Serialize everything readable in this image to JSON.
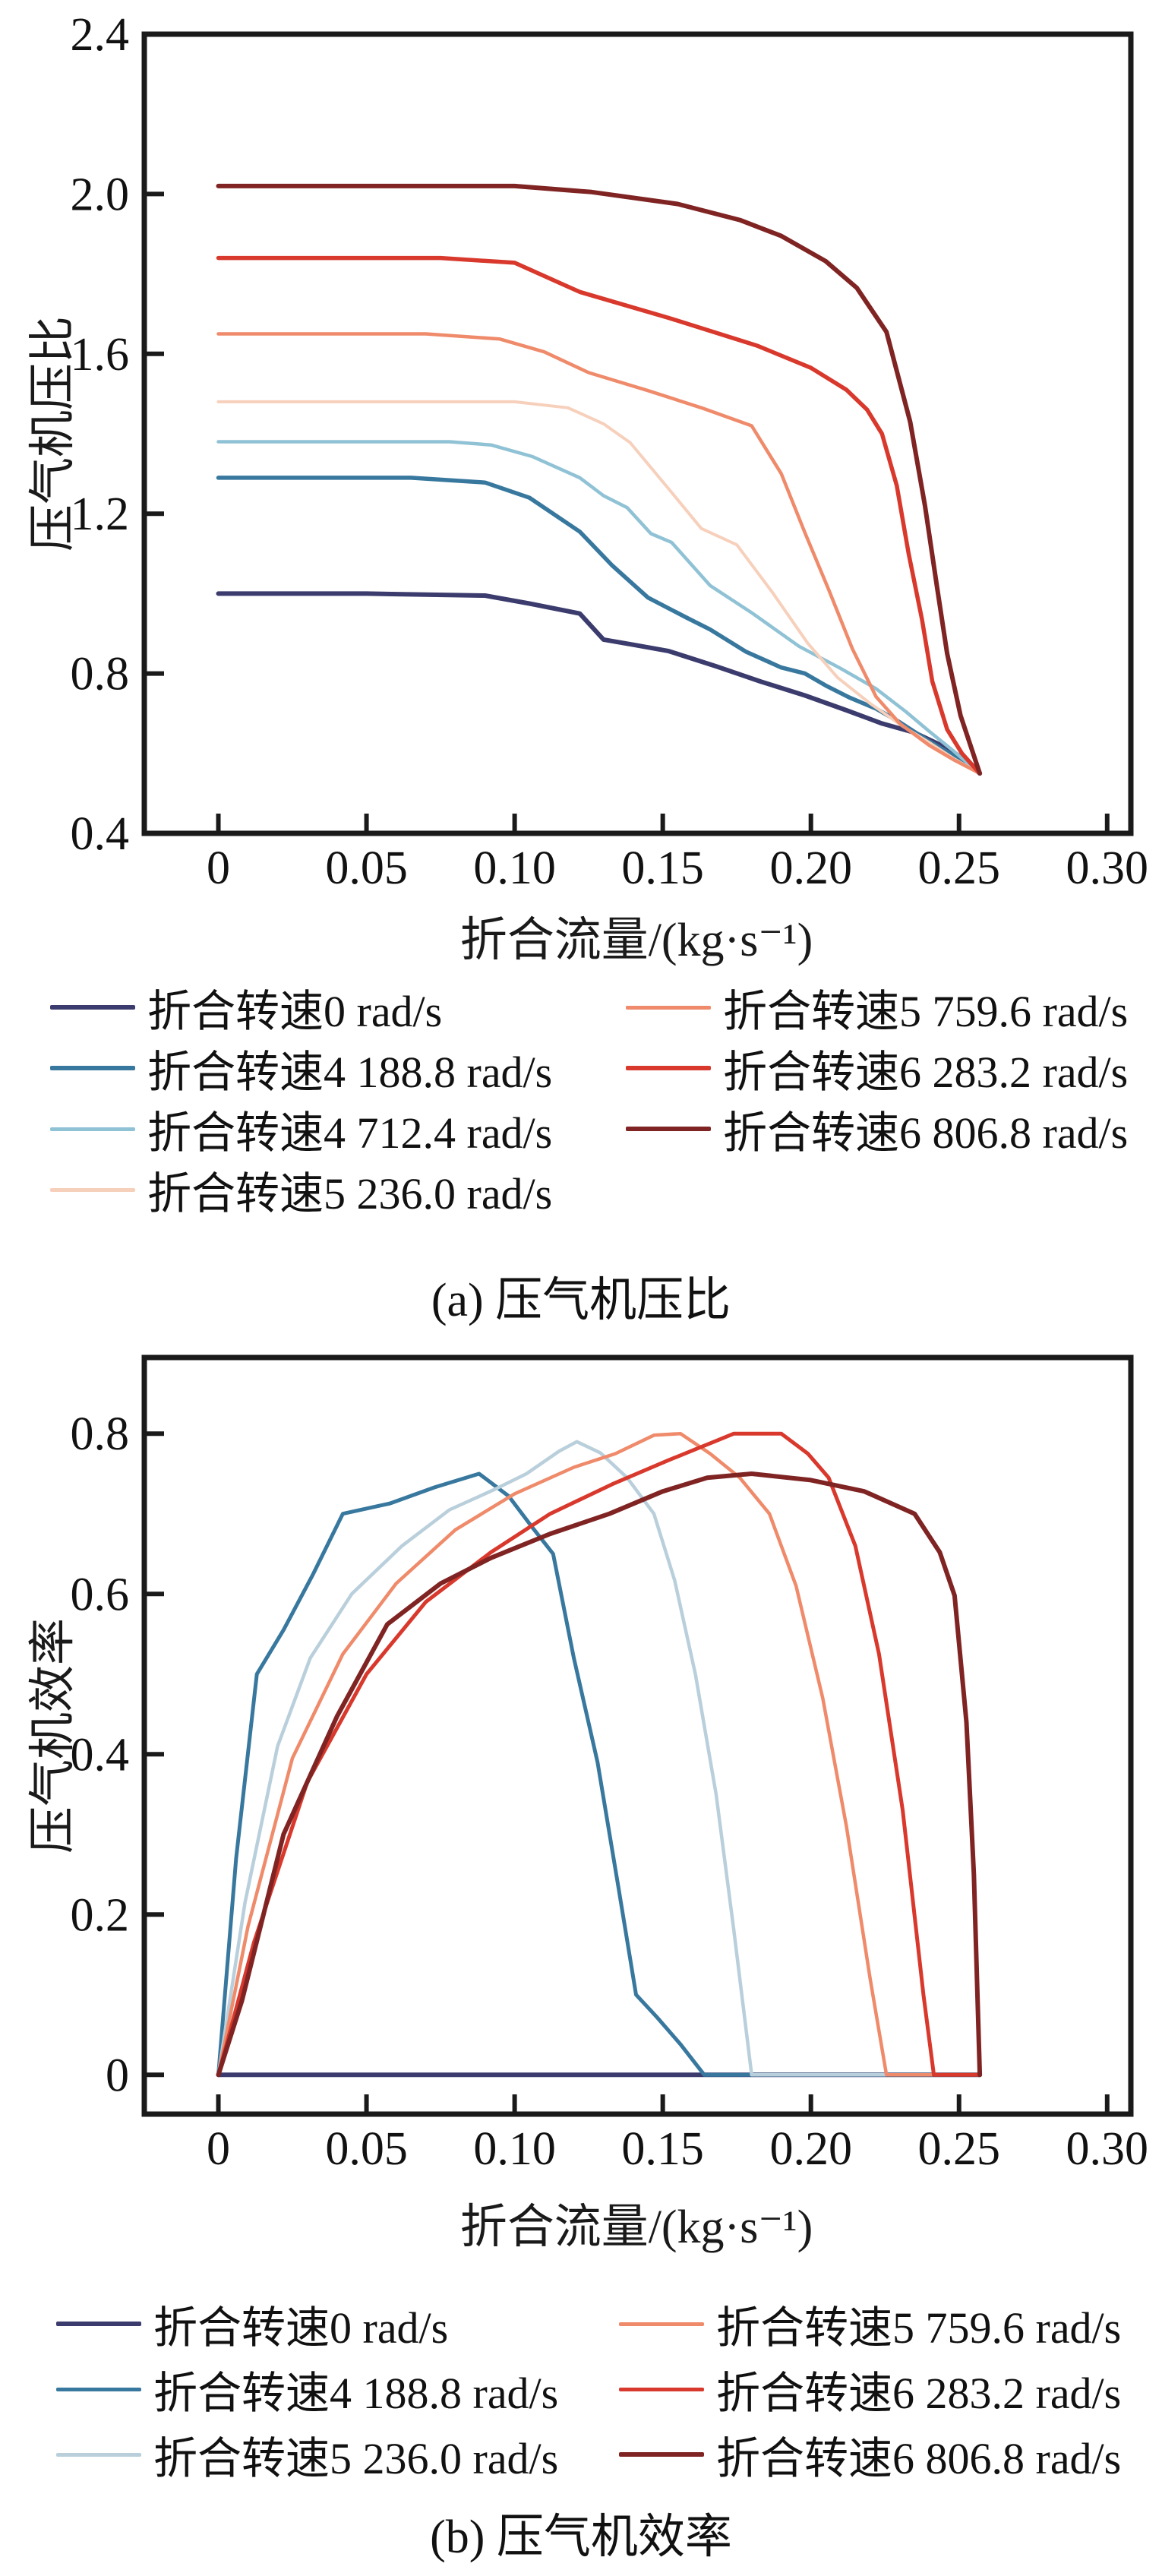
{
  "figure": {
    "background": "#ffffff",
    "axis_color": "#1a1a1a",
    "description": "两张压气机特性曲线图：(a) 压气机压比, (b) 压气机效率"
  },
  "captions": {
    "a": "(a) 压气机压比",
    "b": "(b) 压气机效率"
  },
  "chart_data": [
    {
      "id": "a",
      "type": "line",
      "title": "",
      "xlabel": "折合流量/(kg·s⁻¹)",
      "ylabel": "压气机压比",
      "xlim": [
        -0.025,
        0.308
      ],
      "ylim": [
        0.4,
        2.4
      ],
      "xticks": [
        0,
        0.05,
        0.1,
        0.15,
        0.2,
        0.25,
        0.3
      ],
      "xtick_labels": [
        "0",
        "0.05",
        "0.10",
        "0.15",
        "0.20",
        "0.25",
        "0.30"
      ],
      "yticks": [
        0.4,
        0.8,
        1.2,
        1.6,
        2.0,
        2.4
      ],
      "ytick_labels": [
        "0.4",
        "0.8",
        "1.2",
        "1.6",
        "2.0",
        "2.4"
      ],
      "grid": false,
      "legend_position": "below-two-columns",
      "series": [
        {
          "name": "折合转速0 rad/s",
          "color": "#3b3b6d",
          "width": 6,
          "points": [
            [
              0,
              1.0
            ],
            [
              0.05,
              1.0
            ],
            [
              0.09,
              0.995
            ],
            [
              0.105,
              0.975
            ],
            [
              0.122,
              0.95
            ],
            [
              0.13,
              0.885
            ],
            [
              0.14,
              0.872
            ],
            [
              0.152,
              0.856
            ],
            [
              0.168,
              0.818
            ],
            [
              0.183,
              0.78
            ],
            [
              0.198,
              0.745
            ],
            [
              0.212,
              0.708
            ],
            [
              0.224,
              0.675
            ],
            [
              0.235,
              0.652
            ],
            [
              0.245,
              0.617
            ],
            [
              0.252,
              0.585
            ],
            [
              0.257,
              0.55
            ]
          ]
        },
        {
          "name": "折合转速4 188.8 rad/s",
          "color": "#38789e",
          "width": 5.5,
          "points": [
            [
              0,
              1.29
            ],
            [
              0.065,
              1.29
            ],
            [
              0.09,
              1.278
            ],
            [
              0.105,
              1.24
            ],
            [
              0.122,
              1.155
            ],
            [
              0.133,
              1.07
            ],
            [
              0.145,
              0.99
            ],
            [
              0.158,
              0.94
            ],
            [
              0.166,
              0.91
            ],
            [
              0.178,
              0.855
            ],
            [
              0.19,
              0.815
            ],
            [
              0.198,
              0.8
            ],
            [
              0.205,
              0.77
            ],
            [
              0.213,
              0.74
            ],
            [
              0.222,
              0.712
            ],
            [
              0.23,
              0.678
            ],
            [
              0.24,
              0.63
            ],
            [
              0.248,
              0.595
            ],
            [
              0.257,
              0.55
            ]
          ]
        },
        {
          "name": "折合转速4 712.4 rad/s",
          "color": "#90c2d5",
          "width": 4.5,
          "points": [
            [
              0,
              1.38
            ],
            [
              0.078,
              1.38
            ],
            [
              0.092,
              1.372
            ],
            [
              0.106,
              1.343
            ],
            [
              0.122,
              1.29
            ],
            [
              0.13,
              1.245
            ],
            [
              0.138,
              1.215
            ],
            [
              0.146,
              1.15
            ],
            [
              0.153,
              1.128
            ],
            [
              0.166,
              1.02
            ],
            [
              0.18,
              0.952
            ],
            [
              0.196,
              0.868
            ],
            [
              0.21,
              0.813
            ],
            [
              0.222,
              0.762
            ],
            [
              0.232,
              0.705
            ],
            [
              0.24,
              0.655
            ],
            [
              0.248,
              0.607
            ],
            [
              0.257,
              0.55
            ]
          ]
        },
        {
          "name": "折合转速5 236.0 rad/s",
          "color": "#f7d0bc",
          "width": 4,
          "points": [
            [
              0,
              1.48
            ],
            [
              0.1,
              1.48
            ],
            [
              0.118,
              1.465
            ],
            [
              0.13,
              1.425
            ],
            [
              0.139,
              1.378
            ],
            [
              0.152,
              1.262
            ],
            [
              0.163,
              1.163
            ],
            [
              0.175,
              1.122
            ],
            [
              0.187,
              1.003
            ],
            [
              0.199,
              0.875
            ],
            [
              0.209,
              0.79
            ],
            [
              0.22,
              0.725
            ],
            [
              0.231,
              0.668
            ],
            [
              0.24,
              0.627
            ],
            [
              0.248,
              0.588
            ],
            [
              0.257,
              0.55
            ]
          ]
        },
        {
          "name": "折合转速5 759.6 rad/s",
          "color": "#ef8a6a",
          "width": 4.5,
          "points": [
            [
              0,
              1.65
            ],
            [
              0.07,
              1.65
            ],
            [
              0.095,
              1.637
            ],
            [
              0.11,
              1.605
            ],
            [
              0.125,
              1.553
            ],
            [
              0.145,
              1.508
            ],
            [
              0.163,
              1.465
            ],
            [
              0.18,
              1.42
            ],
            [
              0.19,
              1.3
            ],
            [
              0.198,
              1.152
            ],
            [
              0.206,
              1.01
            ],
            [
              0.214,
              0.862
            ],
            [
              0.222,
              0.742
            ],
            [
              0.23,
              0.675
            ],
            [
              0.24,
              0.62
            ],
            [
              0.248,
              0.585
            ],
            [
              0.257,
              0.55
            ]
          ]
        },
        {
          "name": "折合转速6 283.2 rad/s",
          "color": "#d8392c",
          "width": 5.5,
          "points": [
            [
              0,
              1.84
            ],
            [
              0.075,
              1.84
            ],
            [
              0.1,
              1.828
            ],
            [
              0.122,
              1.755
            ],
            [
              0.152,
              1.69
            ],
            [
              0.182,
              1.62
            ],
            [
              0.2,
              1.565
            ],
            [
              0.212,
              1.51
            ],
            [
              0.219,
              1.46
            ],
            [
              0.224,
              1.4
            ],
            [
              0.229,
              1.27
            ],
            [
              0.233,
              1.1
            ],
            [
              0.2375,
              0.935
            ],
            [
              0.241,
              0.78
            ],
            [
              0.246,
              0.66
            ],
            [
              0.251,
              0.6
            ],
            [
              0.257,
              0.55
            ]
          ]
        },
        {
          "name": "折合转速6 806.8 rad/s",
          "color": "#7f2423",
          "width": 6,
          "points": [
            [
              0,
              2.02
            ],
            [
              0.1,
              2.02
            ],
            [
              0.126,
              2.005
            ],
            [
              0.155,
              1.975
            ],
            [
              0.176,
              1.935
            ],
            [
              0.19,
              1.895
            ],
            [
              0.205,
              1.832
            ],
            [
              0.2155,
              1.765
            ],
            [
              0.2255,
              1.655
            ],
            [
              0.2335,
              1.43
            ],
            [
              0.2385,
              1.22
            ],
            [
              0.2425,
              1.02
            ],
            [
              0.246,
              0.85
            ],
            [
              0.2505,
              0.695
            ],
            [
              0.257,
              0.55
            ]
          ]
        }
      ]
    },
    {
      "id": "b",
      "type": "line",
      "title": "",
      "xlabel": "折合流量/(kg·s⁻¹)",
      "ylabel": "压气机效率",
      "xlim": [
        -0.025,
        0.308
      ],
      "ylim": [
        -0.049,
        0.895
      ],
      "xticks": [
        0,
        0.05,
        0.1,
        0.15,
        0.2,
        0.25,
        0.3
      ],
      "xtick_labels": [
        "0",
        "0.05",
        "0.10",
        "0.15",
        "0.20",
        "0.25",
        "0.30"
      ],
      "yticks": [
        0,
        0.2,
        0.4,
        0.6,
        0.8
      ],
      "ytick_labels": [
        "0",
        "0.2",
        "0.4",
        "0.6",
        "0.8"
      ],
      "grid": false,
      "legend_position": "below-two-columns",
      "series": [
        {
          "name": "折合转速0 rad/s",
          "color": "#3b3b6d",
          "width": 6,
          "points": [
            [
              0,
              0
            ],
            [
              0.257,
              0
            ]
          ]
        },
        {
          "name": "折合转速4 188.8 rad/s",
          "color": "#38789e",
          "width": 5,
          "points": [
            [
              0,
              0
            ],
            [
              0.006,
              0.27
            ],
            [
              0.013,
              0.5
            ],
            [
              0.022,
              0.555
            ],
            [
              0.032,
              0.625
            ],
            [
              0.042,
              0.7
            ],
            [
              0.058,
              0.713
            ],
            [
              0.073,
              0.733
            ],
            [
              0.088,
              0.75
            ],
            [
              0.098,
              0.722
            ],
            [
              0.106,
              0.683
            ],
            [
              0.113,
              0.65
            ],
            [
              0.12,
              0.52
            ],
            [
              0.128,
              0.39
            ],
            [
              0.135,
              0.235
            ],
            [
              0.141,
              0.1
            ],
            [
              0.148,
              0.072
            ],
            [
              0.156,
              0.038
            ],
            [
              0.164,
              0
            ],
            [
              0.257,
              0
            ]
          ]
        },
        {
          "name": "折合转速5 236.0 rad/s",
          "color": "#b9cfdb",
          "width": 4.5,
          "points": [
            [
              0,
              0
            ],
            [
              0.009,
              0.215
            ],
            [
              0.02,
              0.41
            ],
            [
              0.031,
              0.52
            ],
            [
              0.045,
              0.6
            ],
            [
              0.062,
              0.66
            ],
            [
              0.078,
              0.705
            ],
            [
              0.093,
              0.73
            ],
            [
              0.104,
              0.75
            ],
            [
              0.115,
              0.778
            ],
            [
              0.121,
              0.79
            ],
            [
              0.129,
              0.776
            ],
            [
              0.138,
              0.745
            ],
            [
              0.147,
              0.7
            ],
            [
              0.154,
              0.617
            ],
            [
              0.161,
              0.5
            ],
            [
              0.168,
              0.35
            ],
            [
              0.174,
              0.18
            ],
            [
              0.18,
              0
            ],
            [
              0.257,
              0
            ]
          ]
        },
        {
          "name": "折合转速5 759.6 rad/s",
          "color": "#ef8a6a",
          "width": 4.5,
          "points": [
            [
              0,
              0
            ],
            [
              0.01,
              0.185
            ],
            [
              0.025,
              0.395
            ],
            [
              0.042,
              0.525
            ],
            [
              0.06,
              0.613
            ],
            [
              0.08,
              0.68
            ],
            [
              0.1,
              0.725
            ],
            [
              0.12,
              0.758
            ],
            [
              0.134,
              0.775
            ],
            [
              0.147,
              0.798
            ],
            [
              0.156,
              0.8
            ],
            [
              0.166,
              0.775
            ],
            [
              0.176,
              0.745
            ],
            [
              0.186,
              0.7
            ],
            [
              0.195,
              0.61
            ],
            [
              0.204,
              0.47
            ],
            [
              0.212,
              0.31
            ],
            [
              0.22,
              0.12
            ],
            [
              0.2255,
              0
            ],
            [
              0.257,
              0
            ]
          ]
        },
        {
          "name": "折合转速6 283.2 rad/s",
          "color": "#d8392c",
          "width": 5,
          "points": [
            [
              0,
              0
            ],
            [
              0.012,
              0.165
            ],
            [
              0.03,
              0.365
            ],
            [
              0.05,
              0.5
            ],
            [
              0.07,
              0.59
            ],
            [
              0.092,
              0.652
            ],
            [
              0.112,
              0.7
            ],
            [
              0.133,
              0.737
            ],
            [
              0.152,
              0.767
            ],
            [
              0.166,
              0.788
            ],
            [
              0.174,
              0.8
            ],
            [
              0.19,
              0.8
            ],
            [
              0.199,
              0.775
            ],
            [
              0.206,
              0.745
            ],
            [
              0.215,
              0.66
            ],
            [
              0.223,
              0.525
            ],
            [
              0.231,
              0.33
            ],
            [
              0.238,
              0.1
            ],
            [
              0.2415,
              0
            ],
            [
              0.257,
              0
            ]
          ]
        },
        {
          "name": "折合转速6 806.8 rad/s",
          "color": "#7f2423",
          "width": 6,
          "points": [
            [
              0,
              0
            ],
            [
              0.008,
              0.093
            ],
            [
              0.022,
              0.3
            ],
            [
              0.04,
              0.447
            ],
            [
              0.057,
              0.562
            ],
            [
              0.075,
              0.613
            ],
            [
              0.092,
              0.645
            ],
            [
              0.112,
              0.675
            ],
            [
              0.132,
              0.7
            ],
            [
              0.15,
              0.728
            ],
            [
              0.165,
              0.745
            ],
            [
              0.18,
              0.75
            ],
            [
              0.2,
              0.742
            ],
            [
              0.218,
              0.728
            ],
            [
              0.235,
              0.7
            ],
            [
              0.2435,
              0.652
            ],
            [
              0.2485,
              0.598
            ],
            [
              0.2525,
              0.44
            ],
            [
              0.255,
              0.25
            ],
            [
              0.257,
              0
            ]
          ]
        }
      ]
    }
  ]
}
